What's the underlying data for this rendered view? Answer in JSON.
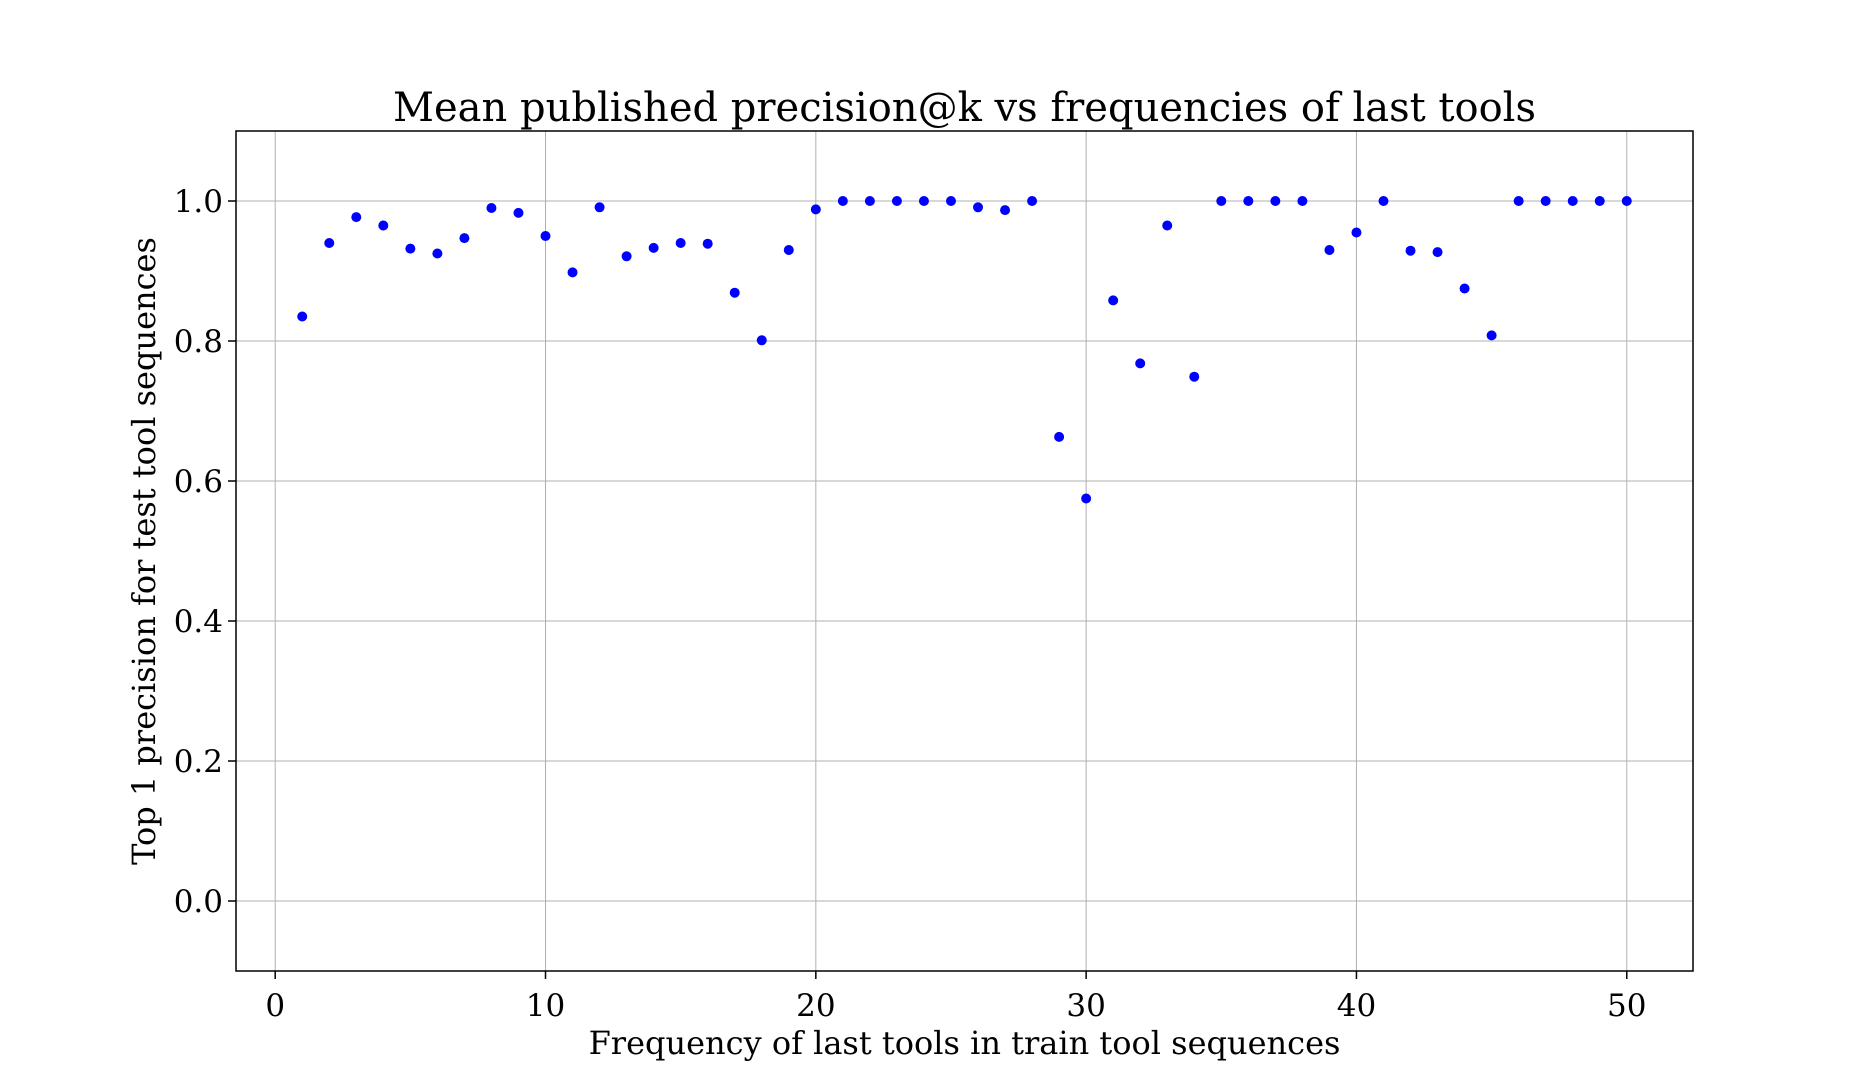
{
  "chart_data": {
    "type": "scatter",
    "title": "Mean published precision@k vs frequencies of last tools",
    "xlabel": "Frequency of last tools in train tool sequences",
    "ylabel": "Top 1 precision for test tool sequences",
    "xlim": [
      -1.45,
      52.45
    ],
    "ylim": [
      -0.1,
      1.1
    ],
    "xticks": [
      0,
      10,
      20,
      30,
      40,
      50
    ],
    "xtick_labels": [
      "0",
      "10",
      "20",
      "30",
      "40",
      "50"
    ],
    "yticks": [
      0.0,
      0.2,
      0.4,
      0.6,
      0.8,
      1.0
    ],
    "ytick_labels": [
      "0.0",
      "0.2",
      "0.4",
      "0.6",
      "0.8",
      "1.0"
    ],
    "grid": true,
    "legend": "none",
    "marker_color": "#0000ff",
    "x": [
      1,
      2,
      3,
      4,
      5,
      6,
      7,
      8,
      9,
      10,
      11,
      12,
      13,
      14,
      15,
      16,
      17,
      18,
      19,
      20,
      21,
      22,
      23,
      24,
      25,
      26,
      27,
      28,
      29,
      30,
      31,
      32,
      33,
      34,
      35,
      36,
      37,
      38,
      39,
      40,
      41,
      42,
      43,
      44,
      45,
      46,
      47,
      48,
      49,
      50
    ],
    "y": [
      0.835,
      0.94,
      0.977,
      0.965,
      0.932,
      0.925,
      0.947,
      0.99,
      0.983,
      0.95,
      0.898,
      0.991,
      0.921,
      0.933,
      0.94,
      0.939,
      0.869,
      0.801,
      0.93,
      0.988,
      1.0,
      1.0,
      1.0,
      1.0,
      1.0,
      0.991,
      0.987,
      1.0,
      0.663,
      0.575,
      0.858,
      0.768,
      0.965,
      0.749,
      1.0,
      1.0,
      1.0,
      1.0,
      0.93,
      0.955,
      1.0,
      0.929,
      0.927,
      0.875,
      0.808,
      1.0,
      1.0,
      1.0,
      1.0,
      1.0
    ]
  }
}
